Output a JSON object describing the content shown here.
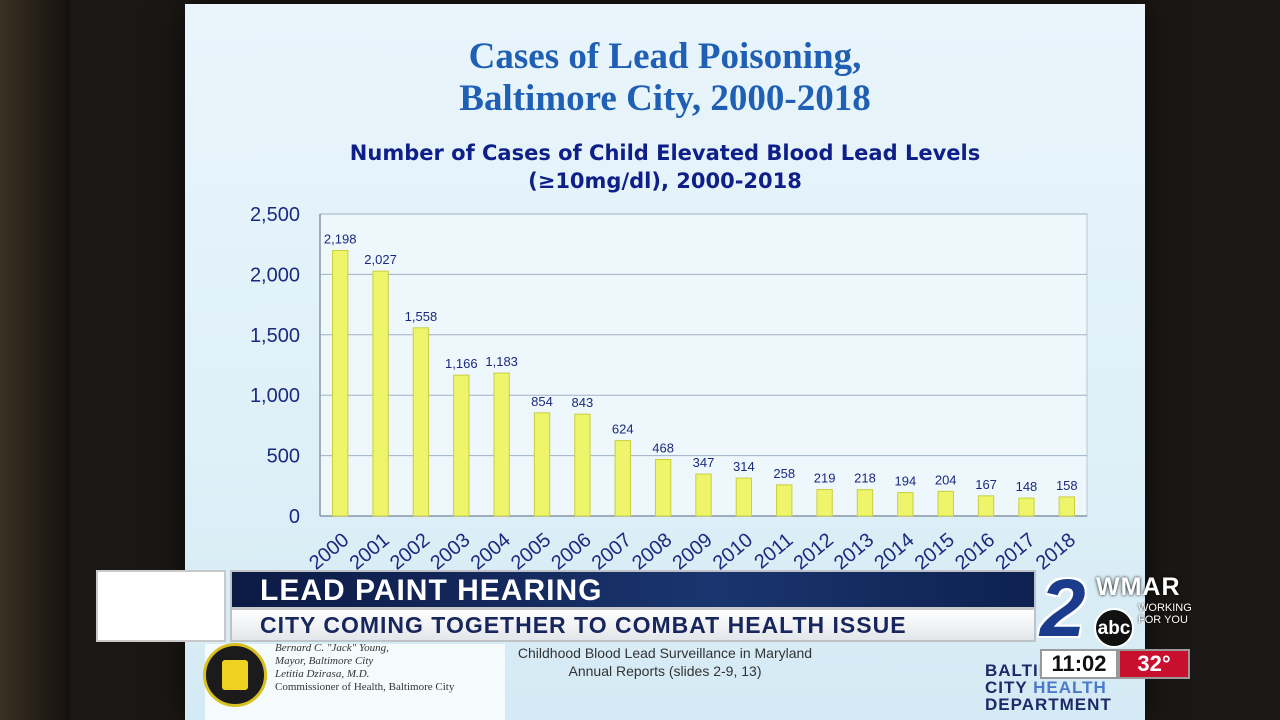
{
  "slide": {
    "title_line1": "Cases of Lead Poisoning,",
    "title_line2": "Baltimore City, 2000-2018",
    "subtitle_line1": "Number of Cases of Child Elevated Blood Lead Levels",
    "subtitle_line2": "(≥10mg/dl), 2000-2018",
    "mayor_line1": "Bernard C. \"Jack\" Young,",
    "mayor_line2": "Mayor, Baltimore City",
    "mayor_line3": "Letitia Dzirasa, M.D.",
    "mayor_line4": "Commissioner of Health, Baltimore City",
    "source_line1": "Childhood Blood Lead Surveillance in Maryland",
    "source_line2": "Annual Reports (slides 2-9, 13)",
    "dept_line1": "BALTIMORE",
    "dept_line2a": "CITY",
    "dept_line2b": "HEALTH",
    "dept_line3": "DEPARTMENT"
  },
  "chart_data": {
    "type": "bar",
    "categories": [
      "2000",
      "2001",
      "2002",
      "2003",
      "2004",
      "2005",
      "2006",
      "2007",
      "2008",
      "2009",
      "2010",
      "2011",
      "2012",
      "2013",
      "2014",
      "2015",
      "2016",
      "2017",
      "2018"
    ],
    "values": [
      2198,
      2027,
      1558,
      1166,
      1183,
      854,
      843,
      624,
      468,
      347,
      314,
      258,
      219,
      218,
      194,
      204,
      167,
      148,
      158
    ],
    "value_labels": [
      "2,198",
      "2,027",
      "1,558",
      "1,166",
      "1,183",
      "854",
      "843",
      "624",
      "468",
      "347",
      "314",
      "258",
      "219",
      "218",
      "194",
      "204",
      "167",
      "148",
      "158"
    ],
    "yticks": [
      0,
      500,
      1000,
      1500,
      2000,
      2500
    ],
    "ytick_labels": [
      "0",
      "500",
      "1,000",
      "1,500",
      "2,000",
      "2,500"
    ],
    "ylim": [
      0,
      2500
    ],
    "grid": true,
    "bar_color": "#eef56a"
  },
  "lower_third": {
    "headline": "LEAD PAINT HEARING",
    "subline": "CITY COMING TOGETHER TO COMBAT HEALTH ISSUE"
  },
  "station": {
    "channel": "2",
    "network": "abc",
    "call_letters": "WMAR",
    "tagline1": "WORKING",
    "tagline2": "FOR YOU",
    "time": "11:02",
    "temperature": "32°"
  }
}
